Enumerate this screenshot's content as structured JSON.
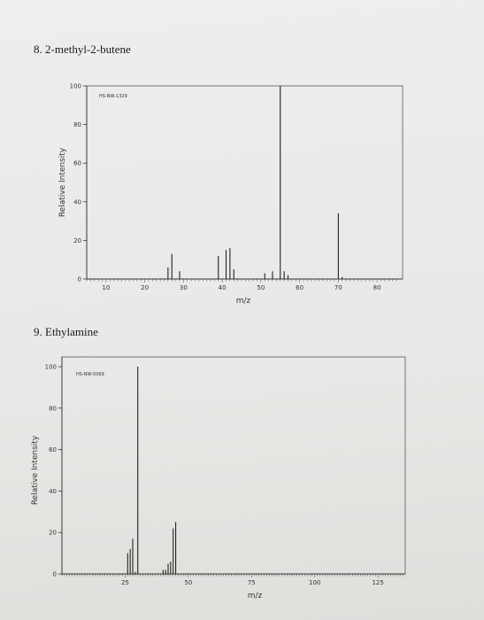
{
  "problems": [
    {
      "number": "8.",
      "name": "2-methyl-2-butene"
    },
    {
      "number": "9.",
      "name": "Ethylamine"
    }
  ],
  "chart_data": [
    {
      "type": "bar",
      "title": "8. 2-methyl-2-butene",
      "spectrum_code": "HS-NW-1329",
      "xlabel": "m/z",
      "ylabel": "Relative Intensity",
      "xlim": [
        5,
        85
      ],
      "ylim": [
        0,
        100
      ],
      "xticks": [
        10,
        20,
        30,
        40,
        50,
        60,
        70,
        80
      ],
      "yticks": [
        0,
        20,
        40,
        60,
        80,
        100
      ],
      "x": [
        26,
        27,
        29,
        39,
        41,
        42,
        43,
        51,
        53,
        55,
        56,
        57,
        70,
        71
      ],
      "values": [
        6,
        13,
        4,
        12,
        15,
        16,
        5,
        3,
        4,
        100,
        4,
        2,
        34,
        1
      ],
      "grid": false
    },
    {
      "type": "bar",
      "title": "9. Ethylamine",
      "spectrum_code": "HS-NW-5069",
      "xlabel": "m/z",
      "ylabel": "Relative Intensity",
      "xlim": [
        0,
        140
      ],
      "ylim": [
        0,
        100
      ],
      "xticks": [
        25,
        50,
        75,
        100,
        125
      ],
      "yticks": [
        0,
        20,
        40,
        60,
        80,
        100
      ],
      "x": [
        26,
        27,
        28,
        29,
        30,
        40,
        41,
        42,
        43,
        44,
        45
      ],
      "values": [
        10,
        12,
        17,
        1,
        100,
        2,
        2,
        5,
        6,
        22,
        25
      ],
      "grid": false
    }
  ]
}
